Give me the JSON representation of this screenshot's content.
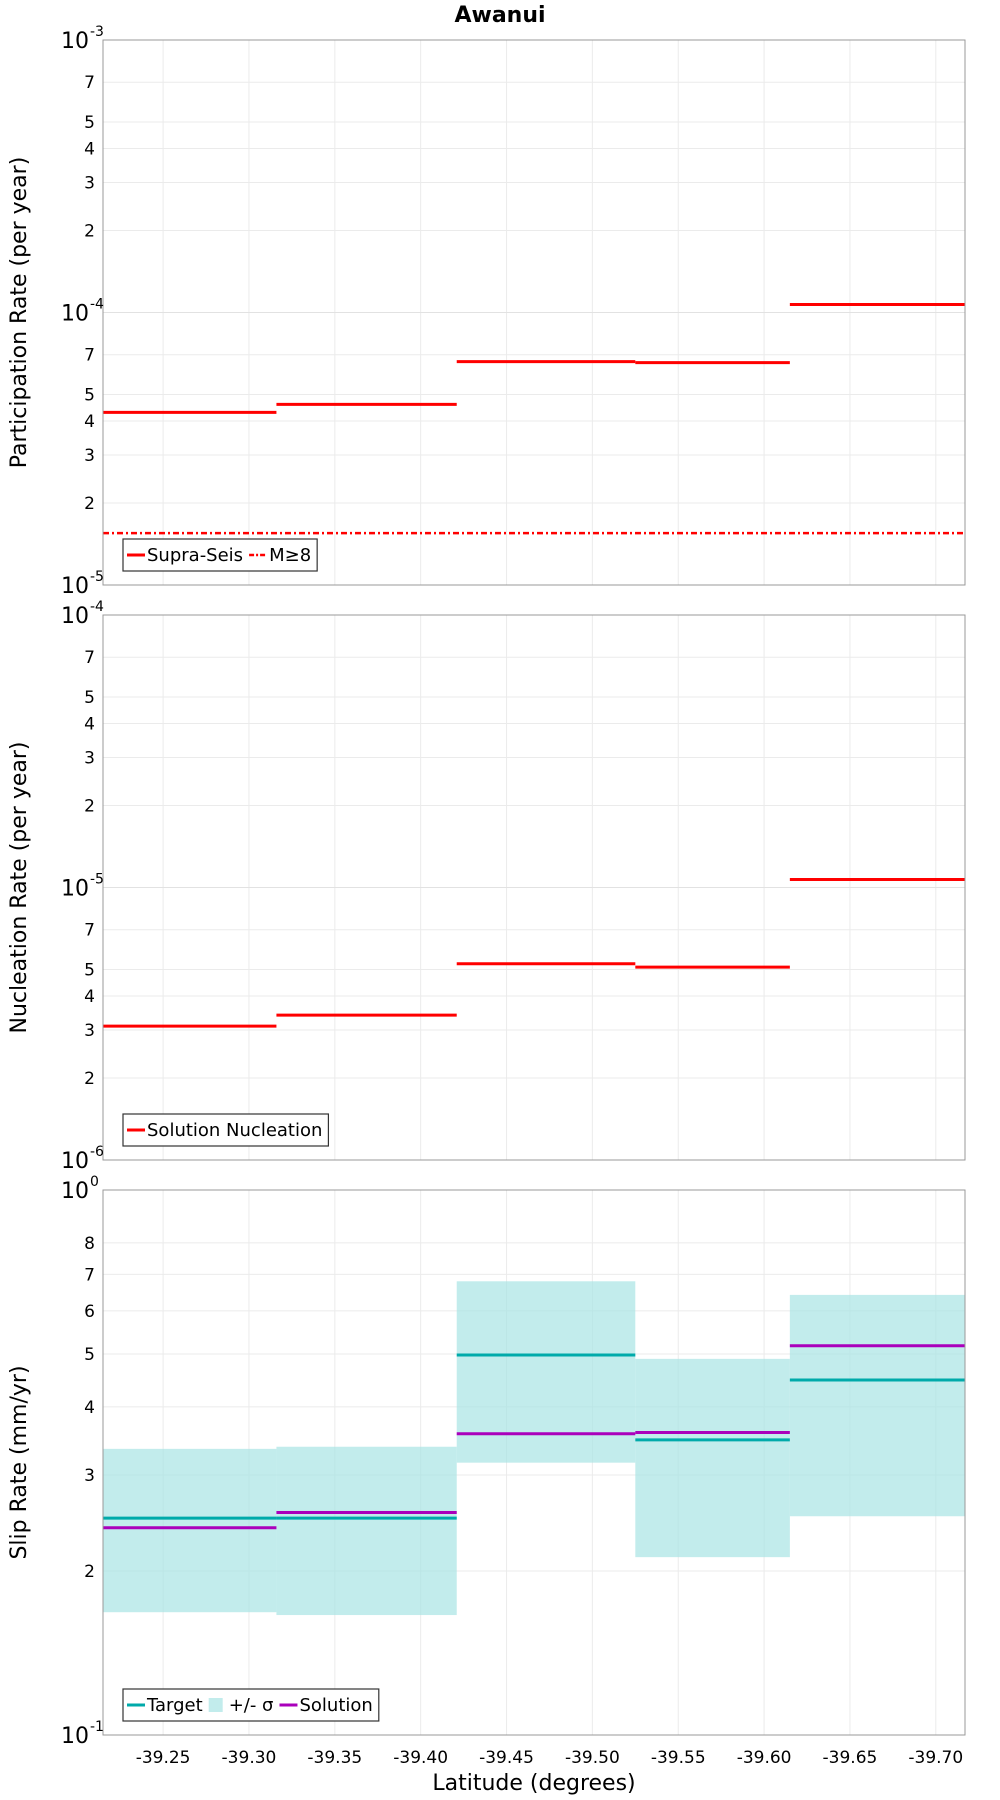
{
  "chart_data": {
    "title": "Awanui",
    "xlabel": "Latitude (degrees)",
    "xlim": [
      -39.215,
      -39.717
    ],
    "x_ticks": [
      -39.25,
      -39.3,
      -39.35,
      -39.4,
      -39.45,
      -39.5,
      -39.55,
      -39.6,
      -39.65,
      -39.7
    ],
    "x_tick_labels": [
      "-39.25",
      "-39.30",
      "-39.35",
      "-39.40",
      "-39.45",
      "-39.50",
      "-39.55",
      "-39.60",
      "-39.65",
      "-39.70"
    ],
    "segments": [
      [
        -39.215,
        -39.316
      ],
      [
        -39.316,
        -39.421
      ],
      [
        -39.421,
        -39.525
      ],
      [
        -39.525,
        -39.615
      ],
      [
        -39.615,
        -39.717
      ]
    ],
    "panels": [
      {
        "type": "step",
        "ylabel": "Participation Rate (per year)",
        "yscale": "log",
        "ylim": [
          1e-05,
          0.001
        ],
        "y_major_ticks": [
          {
            "base": "10",
            "exp": "-5",
            "value": 1e-05
          },
          {
            "base": "10",
            "exp": "-4",
            "value": 0.0001
          },
          {
            "base": "10",
            "exp": "-3",
            "value": 0.001
          }
        ],
        "y_minor_ticks": [
          {
            "label": "2",
            "value": 2e-05
          },
          {
            "label": "3",
            "value": 3e-05
          },
          {
            "label": "4",
            "value": 4e-05
          },
          {
            "label": "5",
            "value": 5e-05
          },
          {
            "label": "7",
            "value": 7e-05
          },
          {
            "label": "2",
            "value": 0.0002
          },
          {
            "label": "3",
            "value": 0.0003
          },
          {
            "label": "4",
            "value": 0.0004
          },
          {
            "label": "5",
            "value": 0.0005
          },
          {
            "label": "7",
            "value": 0.0007
          }
        ],
        "series": [
          {
            "name": "Supra-Seis",
            "color": "#ff0000",
            "style": "solid",
            "values": [
              4.3e-05,
              4.6e-05,
              6.6e-05,
              6.55e-05,
              0.000107
            ]
          },
          {
            "name": "M≥8",
            "color": "#ff0000",
            "style": "dashdot",
            "values": [
              1.55e-05,
              1.55e-05,
              1.55e-05,
              1.55e-05,
              1.55e-05
            ]
          }
        ],
        "legend": "bottom-left"
      },
      {
        "type": "step",
        "ylabel": "Nucleation Rate (per year)",
        "yscale": "log",
        "ylim": [
          1e-06,
          0.0001
        ],
        "y_major_ticks": [
          {
            "base": "10",
            "exp": "-6",
            "value": 1e-06
          },
          {
            "base": "10",
            "exp": "-5",
            "value": 1e-05
          },
          {
            "base": "10",
            "exp": "-4",
            "value": 0.0001
          }
        ],
        "y_minor_ticks": [
          {
            "label": "2",
            "value": 2e-06
          },
          {
            "label": "3",
            "value": 3e-06
          },
          {
            "label": "4",
            "value": 4e-06
          },
          {
            "label": "5",
            "value": 5e-06
          },
          {
            "label": "7",
            "value": 7e-06
          },
          {
            "label": "2",
            "value": 2e-05
          },
          {
            "label": "3",
            "value": 3e-05
          },
          {
            "label": "4",
            "value": 4e-05
          },
          {
            "label": "5",
            "value": 5e-05
          },
          {
            "label": "7",
            "value": 7e-05
          }
        ],
        "series": [
          {
            "name": "Solution Nucleation",
            "color": "#ff0000",
            "style": "solid",
            "values": [
              3.1e-06,
              3.4e-06,
              5.25e-06,
              5.1e-06,
              1.07e-05
            ]
          }
        ],
        "legend": "bottom-left"
      },
      {
        "type": "step",
        "ylabel": "Slip Rate (mm/yr)",
        "yscale": "log",
        "ylim": [
          0.1,
          1.0
        ],
        "y_major_ticks": [
          {
            "base": "10",
            "exp": "-1",
            "value": 0.1
          },
          {
            "base": "10",
            "exp": "0",
            "value": 1.0
          }
        ],
        "y_minor_ticks": [
          {
            "label": "2",
            "value": 0.2
          },
          {
            "label": "3",
            "value": 0.3
          },
          {
            "label": "4",
            "value": 0.4
          },
          {
            "label": "5",
            "value": 0.5
          },
          {
            "label": "6",
            "value": 0.6
          },
          {
            "label": "7",
            "value": 0.7
          },
          {
            "label": "8",
            "value": 0.8
          }
        ],
        "bands": [
          {
            "name": "+/- σ",
            "color": "#a8e4e4",
            "lower": [
              0.168,
              0.166,
              0.316,
              0.212,
              0.252
            ],
            "upper": [
              0.335,
              0.338,
              0.68,
              0.49,
              0.642
            ]
          }
        ],
        "series": [
          {
            "name": "Target",
            "color": "#00aaaa",
            "style": "solid",
            "values": [
              0.25,
              0.25,
              0.498,
              0.348,
              0.448
            ]
          },
          {
            "name": "Solution",
            "color": "#aa00bb",
            "style": "solid",
            "values": [
              0.24,
              0.256,
              0.357,
              0.359,
              0.518
            ]
          }
        ],
        "legend": "bottom-left",
        "legend_order": [
          "Target",
          "+/- σ",
          "Solution"
        ]
      }
    ]
  }
}
